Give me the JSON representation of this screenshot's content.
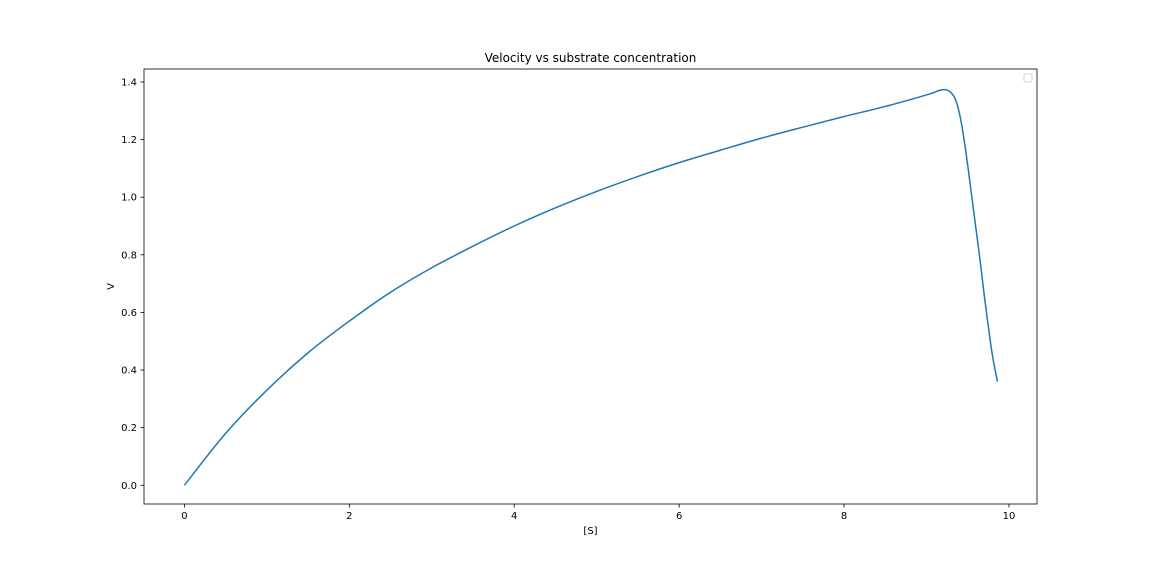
{
  "chart_data": {
    "type": "line",
    "title": "Velocity vs substrate concentration",
    "xlabel": "[S]",
    "ylabel": "V",
    "xlim": [
      -0.49,
      10.34
    ],
    "ylim": [
      -0.065,
      1.445
    ],
    "xticks": [
      0,
      2,
      4,
      6,
      8,
      10
    ],
    "yticks": [
      0.0,
      0.2,
      0.4,
      0.6,
      0.8,
      1.0,
      1.2,
      1.4
    ],
    "xtick_labels": [
      "0",
      "2",
      "4",
      "6",
      "8",
      "10"
    ],
    "ytick_labels": [
      "0.0",
      "0.2",
      "0.4",
      "0.6",
      "0.8",
      "1.0",
      "1.2",
      "1.4"
    ],
    "grid": false,
    "legend": "top-right",
    "series": [
      {
        "color": "#1f77b4",
        "x": [
          0,
          0.5,
          1,
          1.5,
          2,
          2.5,
          3,
          3.5,
          4,
          4.5,
          5,
          5.5,
          6,
          6.5,
          7,
          7.5,
          8,
          8.5,
          9,
          9.15,
          9.2,
          9.25,
          9.3,
          9.35,
          9.4,
          9.45,
          9.5,
          9.55,
          9.6,
          9.65,
          9.7,
          9.75,
          9.8,
          9.86
        ],
        "y": [
          0.0,
          0.18,
          0.33,
          0.46,
          0.57,
          0.67,
          0.755,
          0.83,
          0.9,
          0.963,
          1.02,
          1.072,
          1.12,
          1.163,
          1.205,
          1.243,
          1.28,
          1.315,
          1.355,
          1.37,
          1.373,
          1.372,
          1.362,
          1.34,
          1.29,
          1.21,
          1.11,
          1.0,
          0.89,
          0.78,
          0.66,
          0.55,
          0.45,
          0.36
        ]
      }
    ]
  }
}
